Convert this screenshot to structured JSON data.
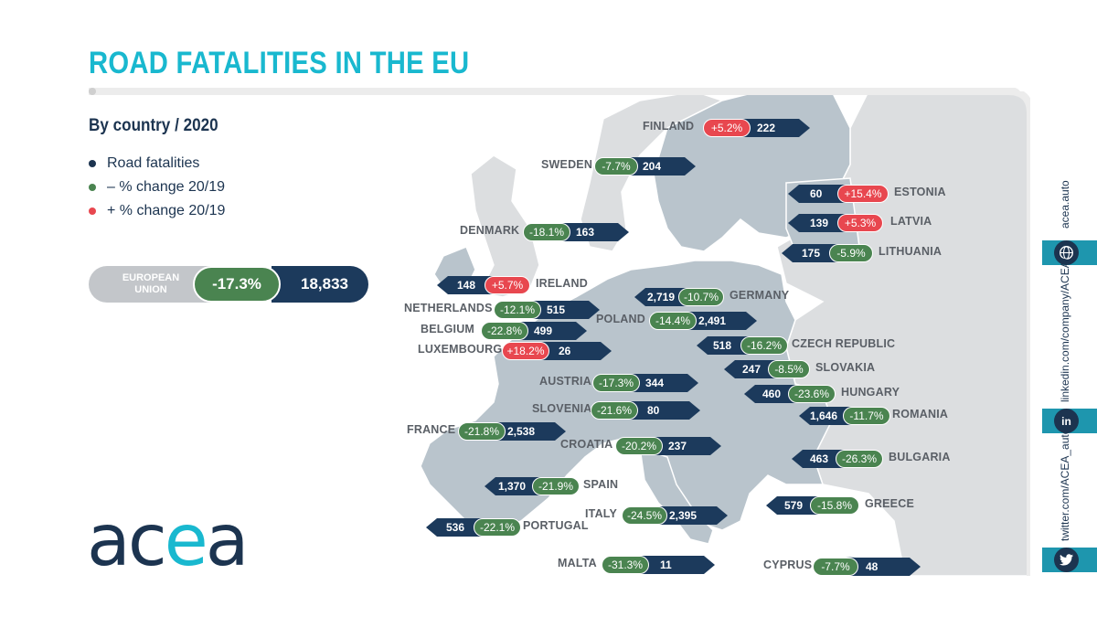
{
  "title": "ROAD FATALITIES IN THE EU",
  "subtitle": "By country / 2020",
  "legend": [
    {
      "label": "Road fatalities",
      "color": "#1c3450"
    },
    {
      "label": "– % change 20/19",
      "color": "#4a8450"
    },
    {
      "label": "+ % change 20/19",
      "color": "#e8474f"
    }
  ],
  "eu": {
    "label": "EUROPEAN UNION",
    "pct": "-17.3%",
    "value": "18,833"
  },
  "colors": {
    "accent": "#19b8cf",
    "navy": "#1c3a5c",
    "decrease": "#4a8450",
    "increase": "#e8474f",
    "land_eu": "#b9c4cc",
    "land_other": "#dcdee0"
  },
  "logo": {
    "a": "a",
    "c": "c",
    "e": "e",
    "a2": "a"
  },
  "social": {
    "web": "acea.auto",
    "linkedin": "linkedin.com/company/ACEA/",
    "twitter": "twitter.com/ACEA_auto",
    "in_label": "in"
  },
  "countries": [
    {
      "name": "FINLAND",
      "pct": "+5.2%",
      "value": "222",
      "dir": "up"
    },
    {
      "name": "SWEDEN",
      "pct": "-7.7%",
      "value": "204",
      "dir": "down"
    },
    {
      "name": "ESTONIA",
      "pct": "+15.4%",
      "value": "60",
      "dir": "up"
    },
    {
      "name": "LATVIA",
      "pct": "+5.3%",
      "value": "139",
      "dir": "up"
    },
    {
      "name": "DENMARK",
      "pct": "-18.1%",
      "value": "163",
      "dir": "down"
    },
    {
      "name": "LITHUANIA",
      "pct": "-5.9%",
      "value": "175",
      "dir": "down"
    },
    {
      "name": "IRELAND",
      "pct": "+5.7%",
      "value": "148",
      "dir": "up"
    },
    {
      "name": "GERMANY",
      "pct": "-10.7%",
      "value": "2,719",
      "dir": "down"
    },
    {
      "name": "NETHERLANDS",
      "pct": "-12.1%",
      "value": "515",
      "dir": "down"
    },
    {
      "name": "POLAND",
      "pct": "-14.4%",
      "value": "2,491",
      "dir": "down"
    },
    {
      "name": "BELGIUM",
      "pct": "-22.8%",
      "value": "499",
      "dir": "down"
    },
    {
      "name": "CZECH REPUBLIC",
      "pct": "-16.2%",
      "value": "518",
      "dir": "down"
    },
    {
      "name": "LUXEMBOURG",
      "pct": "+18.2%",
      "value": "26",
      "dir": "up"
    },
    {
      "name": "SLOVAKIA",
      "pct": "-8.5%",
      "value": "247",
      "dir": "down"
    },
    {
      "name": "AUSTRIA",
      "pct": "-17.3%",
      "value": "344",
      "dir": "down"
    },
    {
      "name": "HUNGARY",
      "pct": "-23.6%",
      "value": "460",
      "dir": "down"
    },
    {
      "name": "SLOVENIA",
      "pct": "-21.6%",
      "value": "80",
      "dir": "down"
    },
    {
      "name": "ROMANIA",
      "pct": "-11.7%",
      "value": "1,646",
      "dir": "down"
    },
    {
      "name": "FRANCE",
      "pct": "-21.8%",
      "value": "2,538",
      "dir": "down"
    },
    {
      "name": "CROATIA",
      "pct": "-20.2%",
      "value": "237",
      "dir": "down"
    },
    {
      "name": "BULGARIA",
      "pct": "-26.3%",
      "value": "463",
      "dir": "down"
    },
    {
      "name": "SPAIN",
      "pct": "-21.9%",
      "value": "1,370",
      "dir": "down"
    },
    {
      "name": "GREECE",
      "pct": "-15.8%",
      "value": "579",
      "dir": "down"
    },
    {
      "name": "ITALY",
      "pct": "-24.5%",
      "value": "2,395",
      "dir": "down"
    },
    {
      "name": "PORTUGAL",
      "pct": "-22.1%",
      "value": "536",
      "dir": "down"
    },
    {
      "name": "MALTA",
      "pct": "-31.3%",
      "value": "11",
      "dir": "down"
    },
    {
      "name": "CYPRUS",
      "pct": "-7.7%",
      "value": "48",
      "dir": "down"
    }
  ]
}
